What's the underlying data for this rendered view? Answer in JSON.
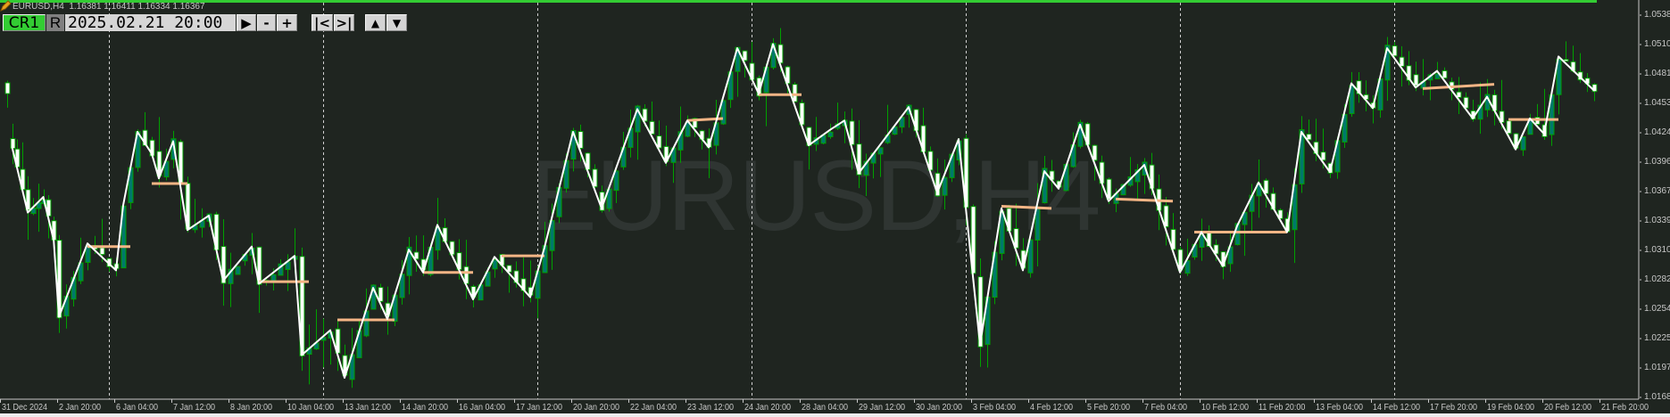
{
  "header": {
    "symbol": "EURUSD,H4",
    "ohlc": "1.16381 1.16411 1.16334 1.16367",
    "watermark": "EURUSD,H4"
  },
  "toolbar": {
    "cr1_label": "CR1",
    "r_label": "R",
    "date_value": "2025.02.21 20:00",
    "play_label": "▶",
    "minus_label": "-",
    "plus_label": "+",
    "first_label": "|<",
    "last_label": ">|",
    "up_label": "▲",
    "down_label": "▼"
  },
  "colors": {
    "background": "#1f2520",
    "top_bar": "#33cc33",
    "bull_body": "#00796b",
    "bear_body": "#ffffff",
    "candle_outline": "#00a000",
    "zigzag_line": "#ffffff",
    "level_lines": "#f5b585",
    "grid_separator": "#d0d0d0"
  },
  "chart_data": {
    "type": "candlestick",
    "symbol": "EURUSD",
    "timeframe": "H4",
    "y_ticks": [
      "1.0538",
      "1.0510",
      "1.0481",
      "1.0453",
      "1.0424",
      "1.0396",
      "1.0367",
      "1.0339",
      "1.0310",
      "1.0282",
      "1.0254",
      "1.0225",
      "1.0197",
      "1.0168"
    ],
    "x_ticks": [
      {
        "label": "31 Dec 2024",
        "time": "2024-12-31 00:00"
      },
      {
        "label": "2 Jan 20:00",
        "time": "2025-01-02 20:00"
      },
      {
        "label": "6 Jan 04:00",
        "time": "2025-01-06 04:00"
      },
      {
        "label": "7 Jan 12:00",
        "time": "2025-01-07 12:00"
      },
      {
        "label": "8 Jan 20:00",
        "time": "2025-01-08 20:00"
      },
      {
        "label": "10 Jan 04:00",
        "time": "2025-01-10 04:00"
      },
      {
        "label": "13 Jan 12:00",
        "time": "2025-01-13 12:00"
      },
      {
        "label": "14 Jan 20:00",
        "time": "2025-01-14 20:00"
      },
      {
        "label": "16 Jan 04:00",
        "time": "2025-01-16 04:00"
      },
      {
        "label": "17 Jan 12:00",
        "time": "2025-01-17 12:00"
      },
      {
        "label": "20 Jan 20:00",
        "time": "2025-01-20 20:00"
      },
      {
        "label": "22 Jan 04:00",
        "time": "2025-01-22 04:00"
      },
      {
        "label": "23 Jan 12:00",
        "time": "2025-01-23 12:00"
      },
      {
        "label": "24 Jan 20:00",
        "time": "2025-01-24 20:00"
      },
      {
        "label": "28 Jan 04:00",
        "time": "2025-01-28 04:00"
      },
      {
        "label": "29 Jan 12:00",
        "time": "2025-01-29 12:00"
      },
      {
        "label": "30 Jan 20:00",
        "time": "2025-01-30 20:00"
      },
      {
        "label": "3 Feb 04:00",
        "time": "2025-02-03 04:00"
      },
      {
        "label": "4 Feb 12:00",
        "time": "2025-02-04 12:00"
      },
      {
        "label": "5 Feb 20:00",
        "time": "2025-02-05 20:00"
      },
      {
        "label": "7 Feb 04:00",
        "time": "2025-02-07 04:00"
      },
      {
        "label": "10 Feb 12:00",
        "time": "2025-02-10 12:00"
      },
      {
        "label": "11 Feb 20:00",
        "time": "2025-02-11 20:00"
      },
      {
        "label": "13 Feb 04:00",
        "time": "2025-02-13 04:00"
      },
      {
        "label": "14 Feb 12:00",
        "time": "2025-02-14 12:00"
      },
      {
        "label": "17 Feb 20:00",
        "time": "2025-02-17 20:00"
      },
      {
        "label": "19 Feb 04:00",
        "time": "2025-02-19 04:00"
      },
      {
        "label": "20 Feb 12:00",
        "time": "2025-02-20 12:00"
      },
      {
        "label": "21 Feb 20:00",
        "time": "2025-02-21 20:00"
      }
    ],
    "zigzag": [
      [
        "2024-12-31 08:00",
        1.041
      ],
      [
        "2024-12-31 20:00",
        1.0347
      ],
      [
        "2025-01-02 08:00",
        1.0362
      ],
      [
        "2025-01-02 16:00",
        1.032
      ],
      [
        "2025-01-02 20:00",
        1.0246
      ],
      [
        "2025-01-03 12:00",
        1.0317
      ],
      [
        "2025-01-06 04:00",
        1.0291
      ],
      [
        "2025-01-06 08:00",
        1.0354
      ],
      [
        "2025-01-06 16:00",
        1.0425
      ],
      [
        "2025-01-07 00:00",
        1.0404
      ],
      [
        "2025-01-07 04:00",
        1.038
      ],
      [
        "2025-01-07 12:00",
        1.0416
      ],
      [
        "2025-01-07 20:00",
        1.033
      ],
      [
        "2025-01-08 08:00",
        1.0344
      ],
      [
        "2025-01-08 16:00",
        1.0281
      ],
      [
        "2025-01-09 08:00",
        1.0314
      ],
      [
        "2025-01-09 12:00",
        1.0278
      ],
      [
        "2025-01-10 08:00",
        1.0305
      ],
      [
        "2025-01-10 12:00",
        1.0209
      ],
      [
        "2025-01-13 04:00",
        1.0233
      ],
      [
        "2025-01-13 12:00",
        1.0187
      ],
      [
        "2025-01-14 04:00",
        1.0274
      ],
      [
        "2025-01-14 12:00",
        1.0244
      ],
      [
        "2025-01-15 00:00",
        1.0311
      ],
      [
        "2025-01-15 08:00",
        1.0289
      ],
      [
        "2025-01-15 16:00",
        1.0335
      ],
      [
        "2025-01-16 12:00",
        1.0263
      ],
      [
        "2025-01-17 00:00",
        1.0304
      ],
      [
        "2025-01-17 20:00",
        1.0265
      ],
      [
        "2025-01-20 04:00",
        1.0313
      ],
      [
        "2025-01-20 20:00",
        1.0425
      ],
      [
        "2025-01-21 12:00",
        1.0351
      ],
      [
        "2025-01-22 08:00",
        1.0447
      ],
      [
        "2025-01-23 00:00",
        1.0395
      ],
      [
        "2025-01-23 12:00",
        1.0436
      ],
      [
        "2025-01-24 00:00",
        1.041
      ],
      [
        "2025-01-24 16:00",
        1.0506
      ],
      [
        "2025-01-27 04:00",
        1.0462
      ],
      [
        "2025-01-27 12:00",
        1.051
      ],
      [
        "2025-01-28 08:00",
        1.0412
      ],
      [
        "2025-01-28 20:00",
        1.0427
      ],
      [
        "2025-01-29 04:00",
        1.0436
      ],
      [
        "2025-01-29 12:00",
        1.0385
      ],
      [
        "2025-01-30 16:00",
        1.0449
      ],
      [
        "2025-01-31 08:00",
        1.0366
      ],
      [
        "2025-01-31 20:00",
        1.0418
      ],
      [
        "2025-02-03 08:00",
        1.0219
      ],
      [
        "2025-02-03 20:00",
        1.0351
      ],
      [
        "2025-02-04 08:00",
        1.0291
      ],
      [
        "2025-02-04 20:00",
        1.0387
      ],
      [
        "2025-02-05 04:00",
        1.037
      ],
      [
        "2025-02-05 16:00",
        1.0432
      ],
      [
        "2025-02-06 08:00",
        1.0358
      ],
      [
        "2025-02-07 04:00",
        1.0393
      ],
      [
        "2025-02-10 00:00",
        1.0289
      ],
      [
        "2025-02-10 12:00",
        1.0328
      ],
      [
        "2025-02-11 00:00",
        1.0295
      ],
      [
        "2025-02-11 08:00",
        1.0334
      ],
      [
        "2025-02-11 20:00",
        1.0376
      ],
      [
        "2025-02-12 12:00",
        1.0328
      ],
      [
        "2025-02-12 20:00",
        1.0425
      ],
      [
        "2025-02-13 12:00",
        1.0386
      ],
      [
        "2025-02-14 00:00",
        1.0472
      ],
      [
        "2025-02-14 12:00",
        1.0448
      ],
      [
        "2025-02-14 20:00",
        1.0506
      ],
      [
        "2025-02-17 12:00",
        1.0468
      ],
      [
        "2025-02-18 00:00",
        1.0484
      ],
      [
        "2025-02-18 20:00",
        1.0438
      ],
      [
        "2025-02-19 04:00",
        1.0459
      ],
      [
        "2025-02-19 20:00",
        1.0408
      ],
      [
        "2025-02-20 04:00",
        1.0438
      ],
      [
        "2025-02-20 12:00",
        1.0423
      ],
      [
        "2025-02-20 20:00",
        1.0498
      ],
      [
        "2025-02-21 16:00",
        1.0465
      ]
    ],
    "levels": [
      {
        "from": "2025-01-03 12:00",
        "to": "2025-01-06 12:00",
        "p1": 1.0314,
        "p2": 1.0314
      },
      {
        "from": "2025-01-07 00:00",
        "to": "2025-01-07 20:00",
        "p1": 1.0375,
        "p2": 1.0375
      },
      {
        "from": "2025-01-09 12:00",
        "to": "2025-01-10 16:00",
        "p1": 1.028,
        "p2": 1.028
      },
      {
        "from": "2025-01-13 08:00",
        "to": "2025-01-14 16:00",
        "p1": 1.0243,
        "p2": 1.0243
      },
      {
        "from": "2025-01-15 08:00",
        "to": "2025-01-16 12:00",
        "p1": 1.0289,
        "p2": 1.0289
      },
      {
        "from": "2025-01-17 04:00",
        "to": "2025-01-20 04:00",
        "p1": 1.0305,
        "p2": 1.0305
      },
      {
        "from": "2025-01-23 12:00",
        "to": "2025-01-24 08:00",
        "p1": 1.0436,
        "p2": 1.0438
      },
      {
        "from": "2025-01-27 04:00",
        "to": "2025-01-28 04:00",
        "p1": 1.0461,
        "p2": 1.0461
      },
      {
        "from": "2025-02-03 20:00",
        "to": "2025-02-05 00:00",
        "p1": 1.0353,
        "p2": 1.0351
      },
      {
        "from": "2025-02-06 12:00",
        "to": "2025-02-07 20:00",
        "p1": 1.036,
        "p2": 1.0358
      },
      {
        "from": "2025-02-10 08:00",
        "to": "2025-02-12 12:00",
        "p1": 1.0328,
        "p2": 1.0328
      },
      {
        "from": "2025-02-17 16:00",
        "to": "2025-02-19 08:00",
        "p1": 1.0467,
        "p2": 1.0471
      },
      {
        "from": "2025-02-19 16:00",
        "to": "2025-02-20 20:00",
        "p1": 1.0437,
        "p2": 1.0437
      }
    ]
  }
}
